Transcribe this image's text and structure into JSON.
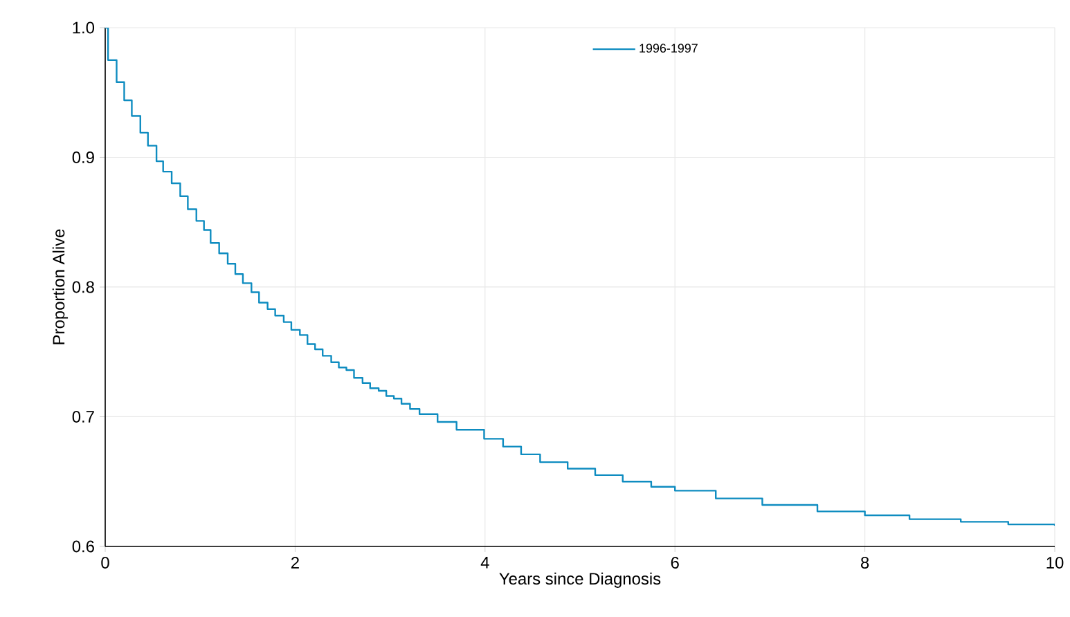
{
  "chart_data": {
    "type": "step",
    "xlabel": "Years since Diagnosis",
    "ylabel": "Proportion Alive",
    "xlim": [
      0,
      10
    ],
    "ylim": [
      0.6,
      1.0
    ],
    "xticks": [
      0,
      2,
      4,
      6,
      8,
      10
    ],
    "yticks": [
      {
        "value": 0.6,
        "label": "0.6"
      },
      {
        "value": 0.7,
        "label": "0.7"
      },
      {
        "value": 0.8,
        "label": "0.8"
      },
      {
        "value": 0.9,
        "label": "0.9"
      },
      {
        "value": 1.0,
        "label": "1.0"
      }
    ],
    "grid": true,
    "legend": "top",
    "marker": "none",
    "line_style": "solid",
    "series": [
      {
        "name": "1996-1997",
        "color": "#0e8cc0",
        "x": [
          0,
          0.03,
          0.12,
          0.2,
          0.28,
          0.37,
          0.45,
          0.54,
          0.61,
          0.7,
          0.79,
          0.87,
          0.96,
          1.04,
          1.11,
          1.2,
          1.29,
          1.37,
          1.45,
          1.54,
          1.62,
          1.71,
          1.79,
          1.88,
          1.96,
          2.05,
          2.13,
          2.21,
          2.29,
          2.38,
          2.46,
          2.54,
          2.62,
          2.71,
          2.79,
          2.88,
          2.96,
          3.04,
          3.12,
          3.21,
          3.31,
          3.5,
          3.7,
          3.99,
          4.19,
          4.38,
          4.58,
          4.87,
          5.16,
          5.45,
          5.75,
          6.0,
          6.43,
          6.92,
          7.5,
          8.0,
          8.47,
          9.01,
          9.51,
          10.0
        ],
        "values": [
          1.0,
          0.975,
          0.958,
          0.944,
          0.932,
          0.919,
          0.909,
          0.897,
          0.889,
          0.88,
          0.87,
          0.86,
          0.851,
          0.844,
          0.834,
          0.826,
          0.818,
          0.81,
          0.803,
          0.796,
          0.788,
          0.783,
          0.778,
          0.773,
          0.767,
          0.763,
          0.756,
          0.752,
          0.747,
          0.742,
          0.738,
          0.736,
          0.73,
          0.726,
          0.722,
          0.72,
          0.716,
          0.714,
          0.71,
          0.706,
          0.702,
          0.696,
          0.69,
          0.683,
          0.677,
          0.671,
          0.665,
          0.66,
          0.655,
          0.65,
          0.646,
          0.643,
          0.637,
          0.632,
          0.627,
          0.624,
          0.621,
          0.619,
          0.617,
          0.616
        ]
      }
    ]
  }
}
